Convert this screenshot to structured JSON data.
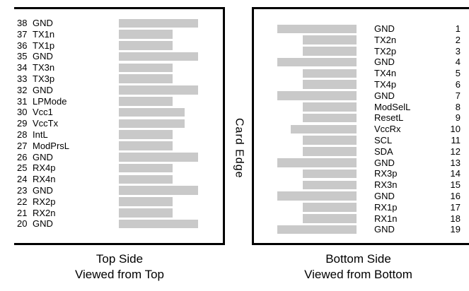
{
  "diagram": {
    "card_edge_label": "Card Edge",
    "colors": {
      "pad_fill": "#c9c9c9",
      "outline": "#000000",
      "text": "#000000"
    },
    "top_side": {
      "caption_line1": "Top Side",
      "caption_line2": "Viewed from Top",
      "pins": [
        {
          "number": "38",
          "label": "GND",
          "type": "gnd"
        },
        {
          "number": "37",
          "label": "TX1n",
          "type": "sig"
        },
        {
          "number": "36",
          "label": "TX1p",
          "type": "sig"
        },
        {
          "number": "35",
          "label": "GND",
          "type": "gnd"
        },
        {
          "number": "34",
          "label": "TX3n",
          "type": "sig"
        },
        {
          "number": "33",
          "label": "TX3p",
          "type": "sig"
        },
        {
          "number": "32",
          "label": "GND",
          "type": "gnd"
        },
        {
          "number": "31",
          "label": "LPMode",
          "type": "sig"
        },
        {
          "number": "30",
          "label": "Vcc1",
          "type": "vcc"
        },
        {
          "number": "29",
          "label": "VccTx",
          "type": "vcc"
        },
        {
          "number": "28",
          "label": "IntL",
          "type": "sig"
        },
        {
          "number": "27",
          "label": "ModPrsL",
          "type": "sig"
        },
        {
          "number": "26",
          "label": "GND",
          "type": "gnd"
        },
        {
          "number": "25",
          "label": "RX4p",
          "type": "sig"
        },
        {
          "number": "24",
          "label": "RX4n",
          "type": "sig"
        },
        {
          "number": "23",
          "label": "GND",
          "type": "gnd"
        },
        {
          "number": "22",
          "label": "RX2p",
          "type": "sig"
        },
        {
          "number": "21",
          "label": "RX2n",
          "type": "sig"
        },
        {
          "number": "20",
          "label": "GND",
          "type": "gnd"
        }
      ]
    },
    "bottom_side": {
      "caption_line1": "Bottom Side",
      "caption_line2": "Viewed from Bottom",
      "pins": [
        {
          "number": "1",
          "label": "GND",
          "type": "gnd"
        },
        {
          "number": "2",
          "label": "TX2n",
          "type": "sig"
        },
        {
          "number": "3",
          "label": "TX2p",
          "type": "sig"
        },
        {
          "number": "4",
          "label": "GND",
          "type": "gnd"
        },
        {
          "number": "5",
          "label": "TX4n",
          "type": "sig"
        },
        {
          "number": "6",
          "label": "TX4p",
          "type": "sig"
        },
        {
          "number": "7",
          "label": "GND",
          "type": "gnd"
        },
        {
          "number": "8",
          "label": "ModSelL",
          "type": "sig"
        },
        {
          "number": "9",
          "label": "ResetL",
          "type": "sig"
        },
        {
          "number": "10",
          "label": "VccRx",
          "type": "vcc"
        },
        {
          "number": "11",
          "label": "SCL",
          "type": "sig"
        },
        {
          "number": "12",
          "label": "SDA",
          "type": "sig"
        },
        {
          "number": "13",
          "label": "GND",
          "type": "gnd"
        },
        {
          "number": "14",
          "label": "RX3p",
          "type": "sig"
        },
        {
          "number": "15",
          "label": "RX3n",
          "type": "sig"
        },
        {
          "number": "16",
          "label": "GND",
          "type": "gnd"
        },
        {
          "number": "17",
          "label": "RX1p",
          "type": "sig"
        },
        {
          "number": "18",
          "label": "RX1n",
          "type": "sig"
        },
        {
          "number": "19",
          "label": "GND",
          "type": "gnd"
        }
      ]
    }
  }
}
